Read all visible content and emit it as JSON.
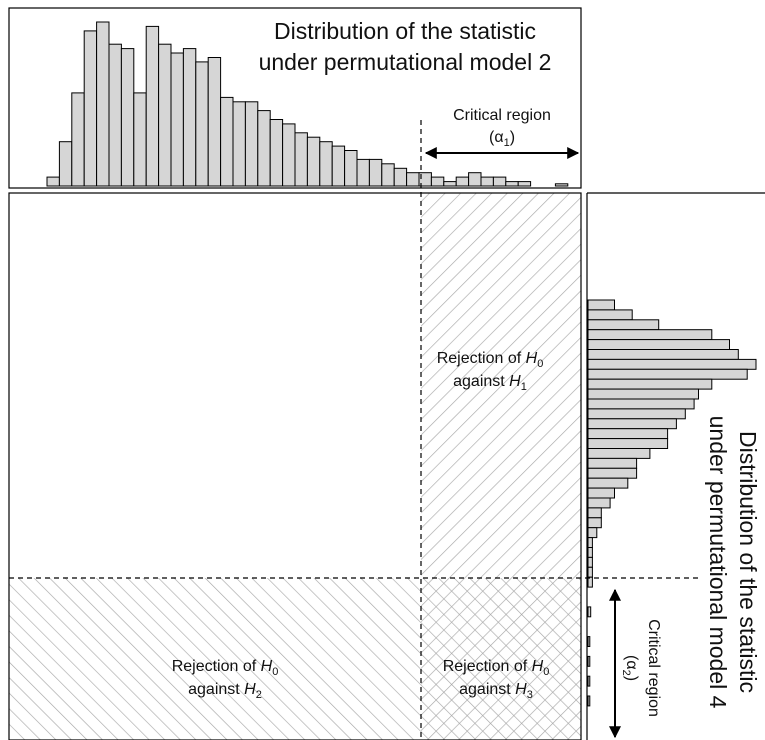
{
  "top_histogram": {
    "title_line1": "Distribution of the statistic",
    "title_line2": "under permutational model 2",
    "counts": [
      2,
      10,
      21,
      35,
      37,
      32,
      31,
      21,
      36,
      32,
      30,
      31,
      28,
      29,
      20,
      19,
      19,
      17,
      15,
      14,
      12,
      11,
      10,
      9,
      8,
      6,
      6,
      5,
      4,
      3,
      3,
      2,
      1,
      2,
      3,
      2,
      2,
      1,
      1,
      0,
      0,
      0.5,
      0,
      0
    ],
    "critical_region": {
      "line1": "Critical region",
      "alpha_symbol": "α",
      "alpha_subscript": "1"
    }
  },
  "right_histogram": {
    "title_line1": "Distribution of the statistic",
    "title_line2": "under permutational model 4",
    "counts": [
      3,
      5,
      8,
      14,
      16,
      17,
      19,
      18,
      14,
      12.5,
      12,
      11,
      10,
      9,
      9,
      7,
      5.5,
      5.5,
      4.5,
      3,
      2.5,
      1.5,
      1.5,
      1,
      0.5,
      0.5,
      0.5,
      0.5,
      0.5,
      0,
      0,
      0.3,
      0,
      0,
      0.2,
      0,
      0.2,
      0,
      0.2,
      0,
      0.2,
      0,
      0
    ],
    "critical_region": {
      "line1": "Critical region",
      "alpha_symbol": "α",
      "alpha_subscript": "2"
    }
  },
  "regions": {
    "h1": {
      "prefix": "Rejection of ",
      "h0": "H",
      "h0_sub": "0",
      "against": "against ",
      "h": "H",
      "h_sub": "1"
    },
    "h2": {
      "prefix": "Rejection of ",
      "h0": "H",
      "h0_sub": "0",
      "against": "against ",
      "h": "H",
      "h_sub": "2"
    },
    "h3": {
      "prefix": "Rejection of ",
      "h0": "H",
      "h0_sub": "0",
      "against": "against ",
      "h": "H",
      "h_sub": "3"
    }
  }
}
